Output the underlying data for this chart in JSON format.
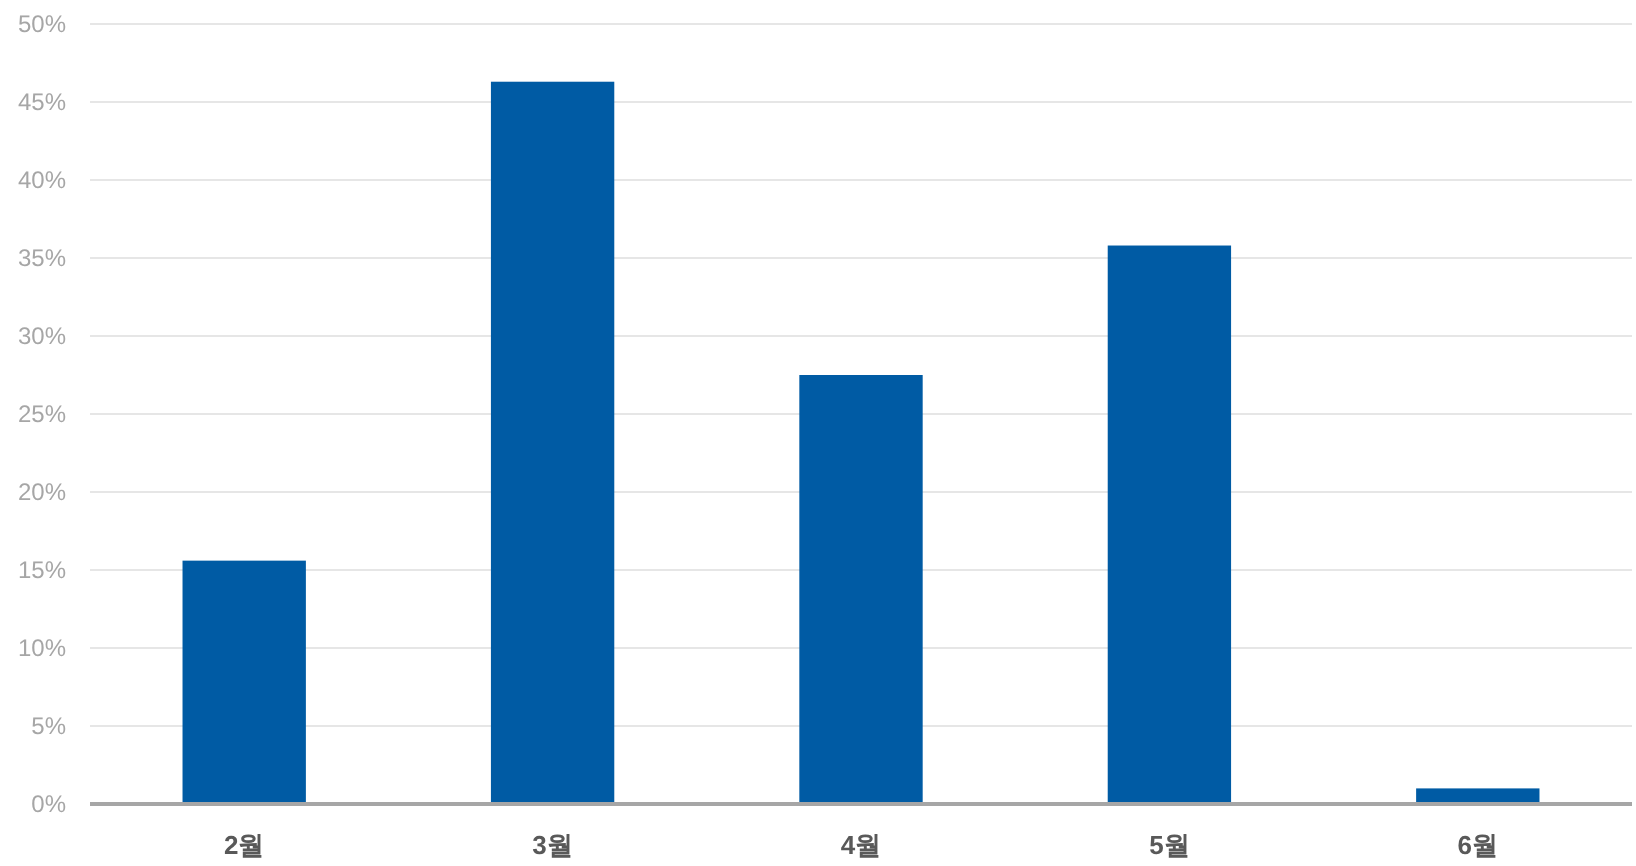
{
  "chart_data": {
    "type": "bar",
    "categories": [
      "2월",
      "3월",
      "4월",
      "5월",
      "6월"
    ],
    "values": [
      15.6,
      46.3,
      27.5,
      35.8,
      1.0
    ],
    "color": "#005ba4",
    "ylim": [
      0,
      50
    ],
    "yticks": [
      {
        "value": 0,
        "label": "0%"
      },
      {
        "value": 5,
        "label": "5%"
      },
      {
        "value": 10,
        "label": "10%"
      },
      {
        "value": 15,
        "label": "15%"
      },
      {
        "value": 20,
        "label": "20%"
      },
      {
        "value": 25,
        "label": "25%"
      },
      {
        "value": 30,
        "label": "30%"
      },
      {
        "value": 35,
        "label": "35%"
      },
      {
        "value": 40,
        "label": "40%"
      },
      {
        "value": 45,
        "label": "45%"
      },
      {
        "value": 50,
        "label": "50%"
      }
    ],
    "grid": "y"
  }
}
